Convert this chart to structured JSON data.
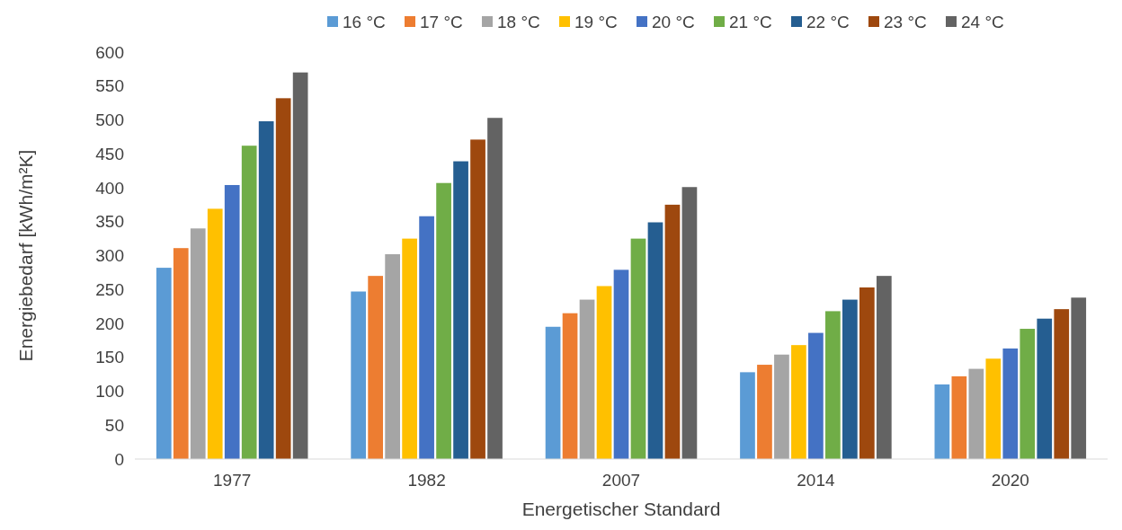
{
  "chart_data": {
    "type": "bar",
    "xlabel": "Energetischer Standard",
    "ylabel": "Energiebedarf  [kWh/m²K]",
    "categories": [
      "1977",
      "1982",
      "2007",
      "2014",
      "2020"
    ],
    "ylim": [
      0,
      600
    ],
    "yticks": [
      0,
      50,
      100,
      150,
      200,
      250,
      300,
      350,
      400,
      450,
      500,
      550,
      600
    ],
    "grid": false,
    "legend": "top",
    "series": [
      {
        "name": "16 °C",
        "color": "#5b9bd5",
        "values": [
          282,
          247,
          195,
          128,
          110
        ]
      },
      {
        "name": "17 °C",
        "color": "#ed7d31",
        "values": [
          311,
          270,
          215,
          139,
          122
        ]
      },
      {
        "name": "18 °C",
        "color": "#a5a5a5",
        "values": [
          340,
          302,
          235,
          154,
          133
        ]
      },
      {
        "name": "19 °C",
        "color": "#ffc000",
        "values": [
          369,
          325,
          255,
          168,
          148
        ]
      },
      {
        "name": "20 °C",
        "color": "#4472c4",
        "values": [
          404,
          358,
          279,
          186,
          163
        ]
      },
      {
        "name": "21 °C",
        "color": "#70ad47",
        "values": [
          462,
          407,
          325,
          218,
          192
        ]
      },
      {
        "name": "22 °C",
        "color": "#255e91",
        "values": [
          498,
          439,
          349,
          235,
          207
        ]
      },
      {
        "name": "23 °C",
        "color": "#9e480e",
        "values": [
          532,
          471,
          375,
          253,
          221
        ]
      },
      {
        "name": "24 °C",
        "color": "#636363",
        "values": [
          570,
          503,
          401,
          270,
          238
        ]
      }
    ]
  }
}
